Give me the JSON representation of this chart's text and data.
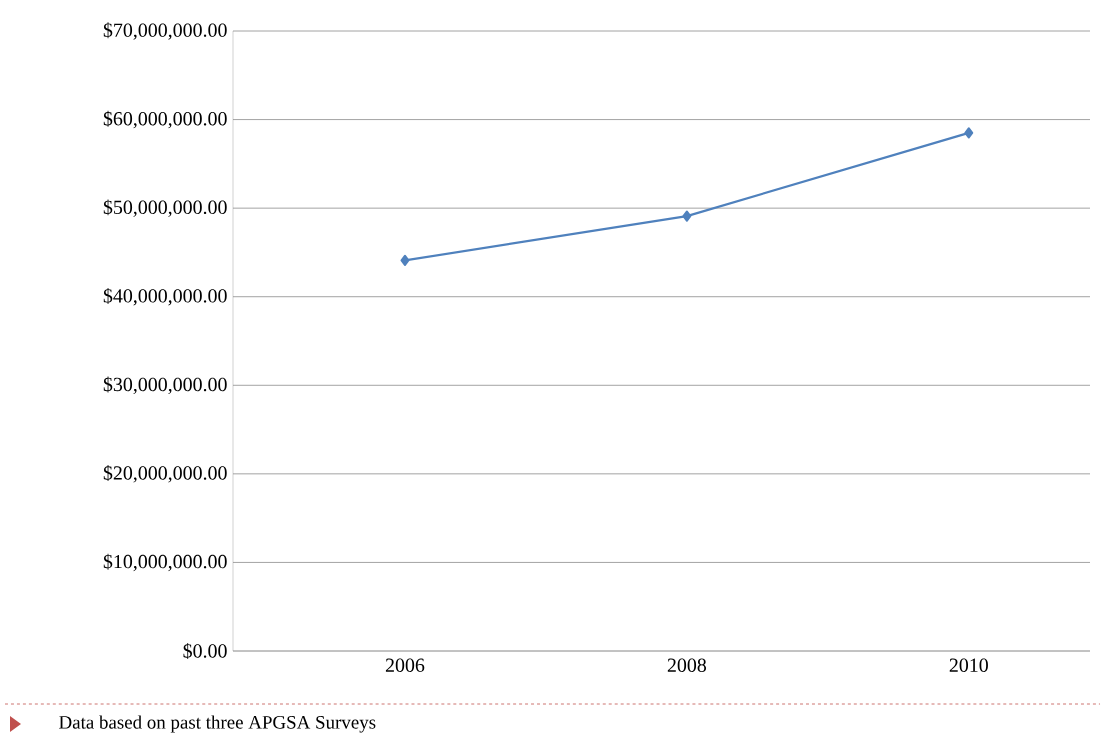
{
  "chart_data": {
    "type": "line",
    "categories": [
      "2006",
      "2008",
      "2010"
    ],
    "series": [
      {
        "color": "#4f81bd",
        "values": [
          44100000,
          49100000,
          58500000
        ]
      }
    ],
    "ylim": [
      0,
      70000000
    ],
    "yticks": [
      {
        "value": 0,
        "label": "$0.00"
      },
      {
        "value": 10000000,
        "label": "$10,000,000.00"
      },
      {
        "value": 20000000,
        "label": "$20,000,000.00"
      },
      {
        "value": 30000000,
        "label": "$30,000,000.00"
      },
      {
        "value": 40000000,
        "label": "$40,000,000.00"
      },
      {
        "value": 50000000,
        "label": "$50,000,000.00"
      },
      {
        "value": 60000000,
        "label": "$60,000,000.00"
      },
      {
        "value": 70000000,
        "label": "$70,000,000.00"
      }
    ],
    "grid": "y",
    "marker": "diamond",
    "line_style": "solid",
    "annotations": [
      "Data based on past three APGSA Surveys"
    ]
  }
}
